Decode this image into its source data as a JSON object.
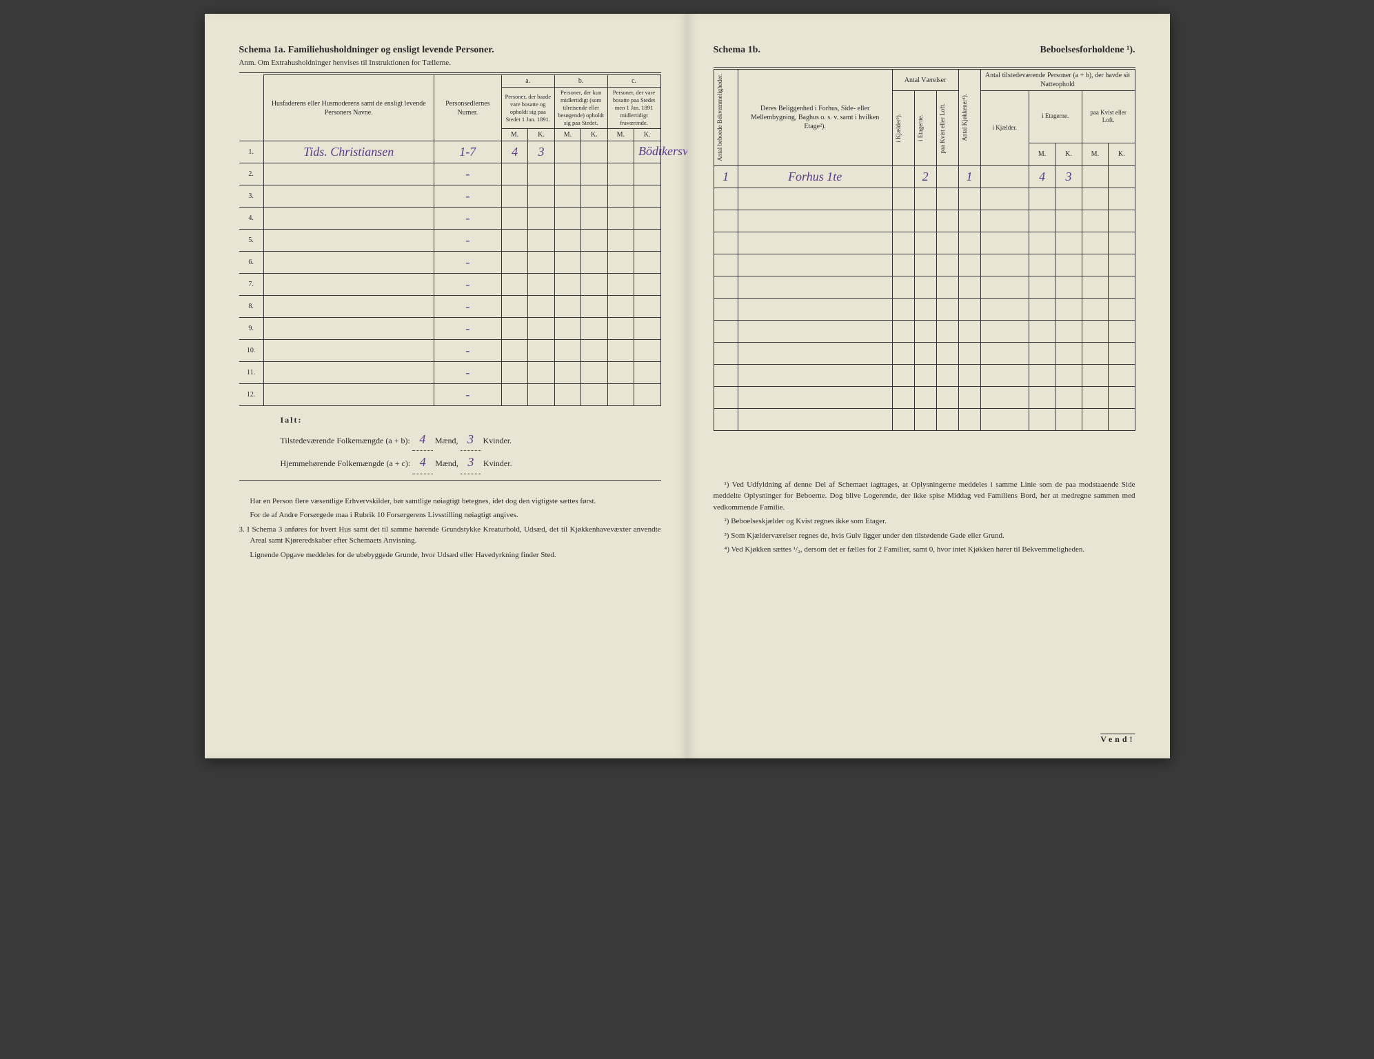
{
  "left": {
    "title": "Schema 1a.   Familiehusholdninger og ensligt levende Personer.",
    "subtitle": "Anm.  Om Extrahusholdninger henvises til Instruktionen for Tællerne.",
    "col_name": "Husfaderens eller Husmoderens samt de ensligt levende Personers Navne.",
    "col_num": "Personsedlernes Numer.",
    "col_a_label": "a.",
    "col_a": "Personer, der baade vare bosatte og opholdt sig paa Stedet 1 Jan. 1891.",
    "col_b_label": "b.",
    "col_b": "Personer, der kun midlertidigt (som tilreisende eller besøgende) opholdt sig paa Stedet.",
    "col_c_label": "c.",
    "col_c": "Personer, der vare bosatte paa Stedet men 1 Jan. 1891 midlertidigt fraværende.",
    "mk_m": "M.",
    "mk_k": "K.",
    "rows": [
      {
        "n": "1.",
        "name": "Tids. Christiansen",
        "num": "1-7",
        "am": "4",
        "ak": "3",
        "extra": "Bödtkersvend"
      },
      {
        "n": "2.",
        "name": "",
        "num": "-"
      },
      {
        "n": "3.",
        "name": "",
        "num": "-"
      },
      {
        "n": "4.",
        "name": "",
        "num": "-"
      },
      {
        "n": "5.",
        "name": "",
        "num": "-"
      },
      {
        "n": "6.",
        "name": "",
        "num": "-"
      },
      {
        "n": "7.",
        "name": "",
        "num": "-"
      },
      {
        "n": "8.",
        "name": "",
        "num": "-"
      },
      {
        "n": "9.",
        "name": "",
        "num": "-"
      },
      {
        "n": "10.",
        "name": "",
        "num": "-"
      },
      {
        "n": "11.",
        "name": "",
        "num": "-"
      },
      {
        "n": "12.",
        "name": "",
        "num": "-"
      }
    ],
    "totals_label": "Ialt:",
    "tot1_pre": "Tilstedeværende Folkemængde (a + b):",
    "tot1_m": "4",
    "tot1_m_suf": "Mænd,",
    "tot1_k": "3",
    "tot1_k_suf": "Kvinder.",
    "tot2_pre": "Hjemmehørende Folkemængde (a + c):",
    "tot2_m": "4",
    "tot2_k": "3",
    "fn1": "Har en Person flere væsentlige Erhvervskilder, bør samtlige nøiagtigt betegnes, idet dog den vigtigste sættes først.",
    "fn2": "For de af Andre Forsørgede maa i Rubrik 10 Forsørgerens Livsstilling nøiagtigt angives.",
    "fn3_label": "3.",
    "fn3": "I Schema 3 anføres for hvert Hus samt det til samme hørende Grundstykke Kreaturhold, Udsæd, det til Kjøkkenhavevæxter anvendte Areal samt Kjøreredskaber efter Schemaets Anvisning.",
    "fn4": "Lignende Opgave meddeles for de ubebyggede Grunde, hvor Udsæd eller Havedyrkning finder Sted."
  },
  "right": {
    "title_a": "Schema 1b.",
    "title_b": "Beboelsesforholdene ¹).",
    "col_bekv": "Antal beboede Bekvemmeligheder.",
    "col_belig": "Deres Beliggenhed i Forhus, Side- eller Mellembygning, Baghus o. s. v. samt i hvilken Etage²).",
    "col_vaer": "Antal Værelser",
    "col_kj": "i Kjælder³).",
    "col_et": "i Etagerne.",
    "col_kv": "paa Kvist eller Loft.",
    "col_kjok": "Antal Kjøkkener⁴).",
    "col_pers": "Antal tilstedeværende Personer (a + b), der havde sit Natteophold",
    "col_pers_kj": "i Kjælder.",
    "col_pers_et": "i Etagerne.",
    "col_pers_kv": "paa Kvist eller Loft.",
    "row1": {
      "n": "1",
      "belig": "Forhus 1te",
      "et": "2",
      "kjok": "1",
      "pm": "4",
      "pk": "3"
    },
    "fn1": "¹) Ved Udfyldning af denne Del af Schemaet iagttages, at Oplysningerne meddeles i samme Linie som de paa modstaaende Side meddelte Oplysninger for Beboerne. Dog blive Logerende, der ikke spise Middag ved Familiens Bord, her at medregne sammen med vedkommende Familie.",
    "fn2": "²) Beboelseskjælder og Kvist regnes ikke som Etager.",
    "fn3": "³) Som Kjælderværelser regnes de, hvis Gulv ligger under den tilstødende Gade eller Grund.",
    "fn4": "⁴) Ved Kjøkken sættes ¹/₂, dersom det er fælles for 2 Familier, samt 0, hvor intet Kjøkken hører til Bekvemmeligheden.",
    "vend": "Vend!"
  }
}
